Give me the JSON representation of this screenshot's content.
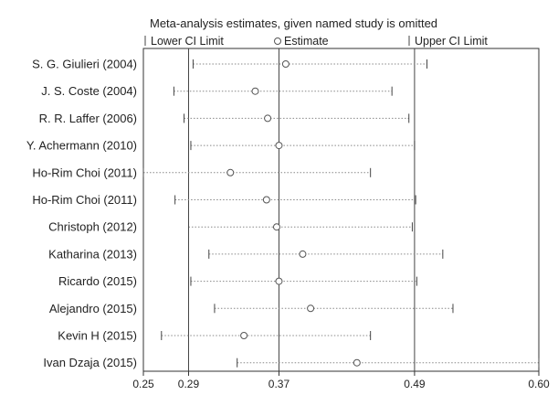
{
  "chart_data": {
    "type": "scatter",
    "title": "Meta-analysis estimates, given named study is omitted",
    "legend": {
      "lower": "Lower CI Limit",
      "estimate": "Estimate",
      "upper": "Upper CI Limit"
    },
    "xlim": [
      0.25,
      0.6
    ],
    "ticks": [
      {
        "value": 0.25,
        "label": "0.25"
      },
      {
        "value": 0.29,
        "label": "0.29"
      },
      {
        "value": 0.37,
        "label": "0.37"
      },
      {
        "value": 0.49,
        "label": "0.49"
      },
      {
        "value": 0.6,
        "label": "0.60"
      }
    ],
    "reference_lines": [
      0.29,
      0.37,
      0.49
    ],
    "studies": [
      {
        "name": "S. G. Giulieri (2004)",
        "lower": 0.294,
        "estimate": 0.376,
        "upper": 0.501
      },
      {
        "name": "J. S. Coste (2004)",
        "lower": 0.277,
        "estimate": 0.349,
        "upper": 0.47
      },
      {
        "name": "R. R. Laffer (2006)",
        "lower": 0.286,
        "estimate": 0.36,
        "upper": 0.485
      },
      {
        "name": "Y. Achermann (2010)",
        "lower": 0.292,
        "estimate": 0.37,
        "upper": 0.49
      },
      {
        "name": "Ho-Rim Choi (2011)",
        "lower": 0.25,
        "estimate": 0.327,
        "upper": 0.451
      },
      {
        "name": "Ho-Rim Choi (2011)",
        "lower": 0.278,
        "estimate": 0.359,
        "upper": 0.491
      },
      {
        "name": "Christoph  (2012)",
        "lower": 0.29,
        "estimate": 0.368,
        "upper": 0.488
      },
      {
        "name": "Katharina  (2013)",
        "lower": 0.308,
        "estimate": 0.391,
        "upper": 0.515
      },
      {
        "name": "Ricardo (2015)",
        "lower": 0.292,
        "estimate": 0.37,
        "upper": 0.492
      },
      {
        "name": "Alejandro (2015)",
        "lower": 0.313,
        "estimate": 0.398,
        "upper": 0.524
      },
      {
        "name": "Kevin H (2015)",
        "lower": 0.266,
        "estimate": 0.339,
        "upper": 0.451
      },
      {
        "name": "Ivan Dzaja (2015)",
        "lower": 0.333,
        "estimate": 0.439,
        "upper": 0.6
      }
    ]
  }
}
